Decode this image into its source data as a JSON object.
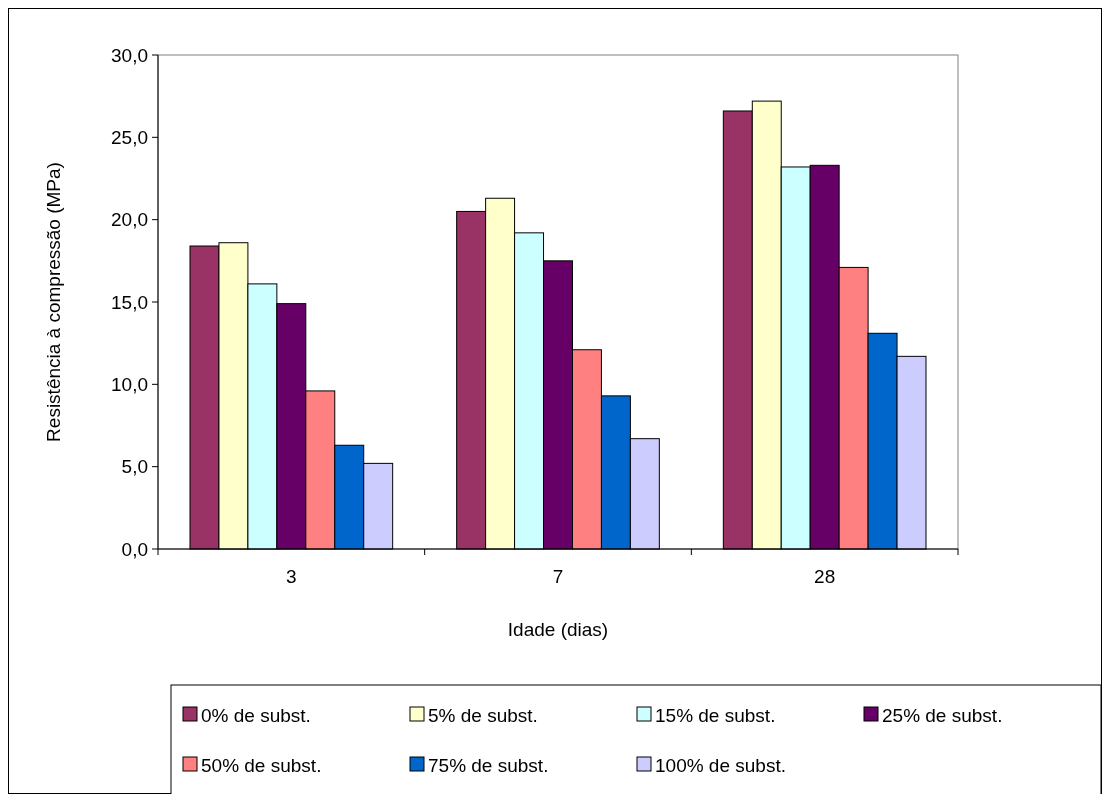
{
  "chart_data": {
    "type": "bar",
    "xlabel": "Idade (dias)",
    "ylabel": "Resistência à compressão (MPa)",
    "categories": [
      "3",
      "7",
      "28"
    ],
    "series": [
      {
        "name": "0% de subst.",
        "color": "#993366",
        "values": [
          18.4,
          20.5,
          26.6
        ]
      },
      {
        "name": "5% de subst.",
        "color": "#ffffcc",
        "values": [
          18.6,
          21.3,
          27.2
        ]
      },
      {
        "name": "15% de subst.",
        "color": "#ccffff",
        "values": [
          16.1,
          19.2,
          23.2
        ]
      },
      {
        "name": "25% de subst.",
        "color": "#660066",
        "values": [
          14.9,
          17.5,
          23.3
        ]
      },
      {
        "name": "50% de subst.",
        "color": "#ff8080",
        "values": [
          9.6,
          12.1,
          17.1
        ]
      },
      {
        "name": "75% de subst.",
        "color": "#0066cc",
        "values": [
          6.3,
          9.3,
          13.1
        ]
      },
      {
        "name": "100% de subst.",
        "color": "#ccccff",
        "values": [
          5.2,
          6.7,
          11.7
        ]
      }
    ],
    "ylim": [
      0,
      30
    ],
    "yticks": [
      {
        "value": 0,
        "label": "0,0"
      },
      {
        "value": 5,
        "label": "5,0"
      },
      {
        "value": 10,
        "label": "10,0"
      },
      {
        "value": 15,
        "label": "15,0"
      },
      {
        "value": 20,
        "label": "20,0"
      },
      {
        "value": 25,
        "label": "25,0"
      },
      {
        "value": 30,
        "label": "30,0"
      }
    ],
    "grid": false,
    "legend": "bottom"
  }
}
